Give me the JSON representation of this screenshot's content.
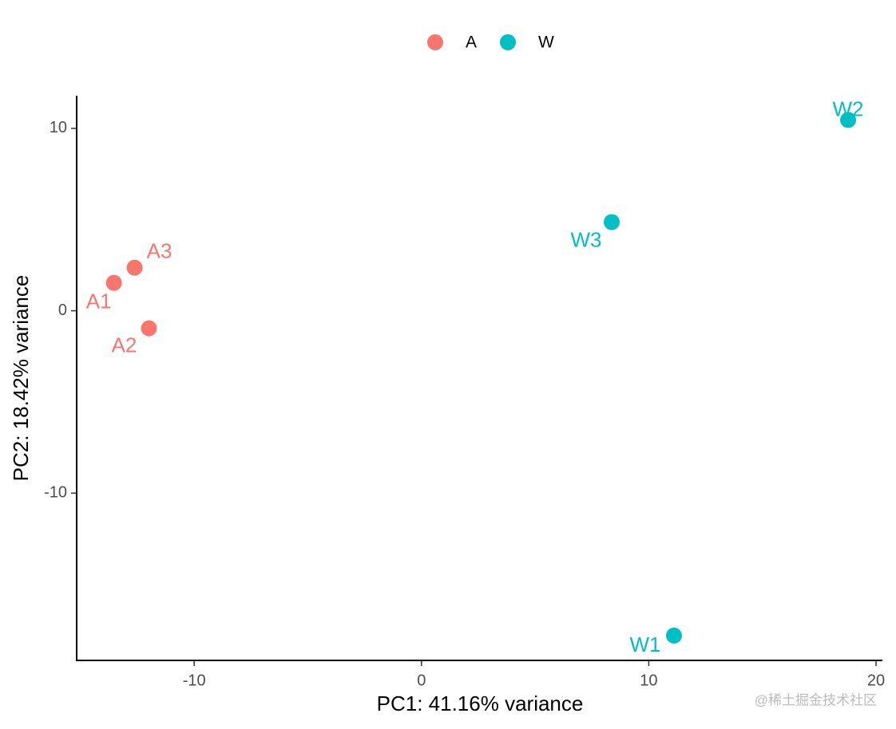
{
  "chart_data": {
    "type": "scatter",
    "xlabel": "PC1: 41.16% variance",
    "ylabel": "PC2: 18.42% variance",
    "series": [
      {
        "name": "A",
        "color": "#F8766D",
        "x": [
          -13.53,
          -11.99,
          -12.62
        ],
        "values": [
          1.53,
          -0.96,
          2.36
        ],
        "labels": [
          "A1",
          "A2",
          "A3"
        ]
      },
      {
        "name": "W",
        "color": "#00BFC4",
        "x": [
          11.11,
          18.77,
          8.37
        ],
        "values": [
          -17.81,
          10.46,
          4.86
        ],
        "labels": [
          "W1",
          "W2",
          "W3"
        ]
      }
    ],
    "xlim": [
      -15.17,
      20.28
    ],
    "ylim": [
      -19.17,
      11.79
    ],
    "xticks": [
      -10,
      0,
      10,
      20
    ],
    "yticks": [
      -10,
      0,
      10
    ],
    "legend": "top",
    "watermark": "@稀土掘金技术社区"
  }
}
